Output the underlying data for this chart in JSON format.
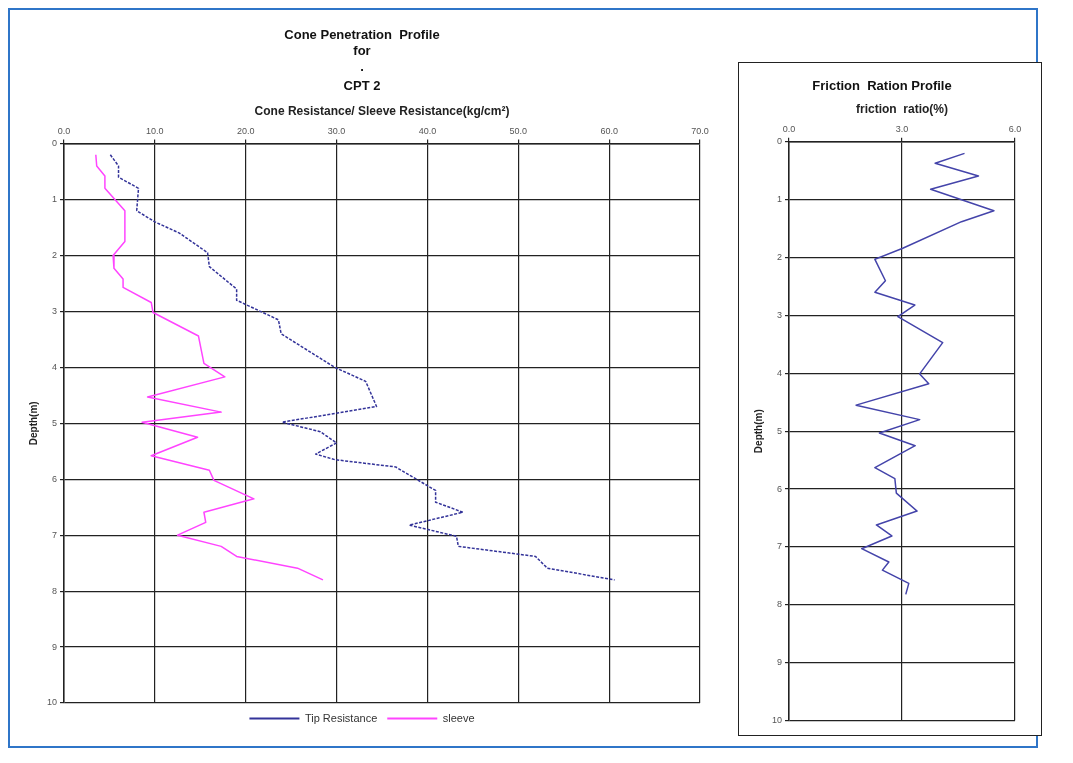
{
  "chart_data": [
    {
      "type": "line",
      "title": "Cone Penetration  Profile\nfor\n.",
      "subtitle": "CPT 2",
      "xlabel": "Cone Resistance/ Sleeve Resistance(kg/cm²)",
      "ylabel": "Depth(m)",
      "xlim": [
        0,
        70
      ],
      "xticks": [
        {
          "value": 0,
          "label": "0.0"
        },
        {
          "value": 10,
          "label": "10.0"
        },
        {
          "value": 20,
          "label": "20.0"
        },
        {
          "value": 30,
          "label": "30.0"
        },
        {
          "value": 40,
          "label": "40.0"
        },
        {
          "value": 50,
          "label": "50.0"
        },
        {
          "value": 60,
          "label": "60.0"
        },
        {
          "value": 70,
          "label": "70.0"
        }
      ],
      "ylim": [
        10,
        0
      ],
      "yticks": [
        0,
        1,
        2,
        3,
        4,
        5,
        6,
        7,
        8,
        9,
        10
      ],
      "grid": true,
      "legend": "bottom",
      "series": [
        {
          "name": "Tip Resistance",
          "color": "#333399",
          "line_style": "dashed",
          "x": [
            5.1,
            6.0,
            6.0,
            8.2,
            8.1,
            8.0,
            10.0,
            12.7,
            15.8,
            16.0,
            19.0,
            19.0,
            23.6,
            23.9,
            29.8,
            33.2,
            34.4,
            24.0,
            28.2,
            30.0,
            27.7,
            29.8,
            36.5,
            39.0,
            40.9,
            40.9,
            43.9,
            38.0,
            43.2,
            43.4,
            51.9,
            53.2,
            60.6
          ],
          "values": [
            0.2,
            0.4,
            0.6,
            0.8,
            1.0,
            1.2,
            1.4,
            1.6,
            1.95,
            2.2,
            2.6,
            2.8,
            3.15,
            3.4,
            4.0,
            4.25,
            4.7,
            4.98,
            5.15,
            5.35,
            5.55,
            5.65,
            5.78,
            6.02,
            6.2,
            6.41,
            6.59,
            6.82,
            7.02,
            7.2,
            7.38,
            7.59,
            7.8
          ]
        },
        {
          "name": "sleeve",
          "color": "#ff44ff",
          "line_style": "solid",
          "x": [
            3.5,
            3.6,
            4.5,
            4.5,
            6.7,
            6.7,
            5.4,
            5.5,
            6.5,
            6.5,
            9.6,
            9.8,
            14.8,
            15.4,
            17.7,
            9.2,
            17.3,
            8.6,
            14.7,
            9.6,
            16.0,
            16.5,
            20.9,
            15.4,
            15.6,
            12.5,
            17.3,
            19.0,
            25.7,
            28.5
          ],
          "values": [
            0.2,
            0.4,
            0.58,
            0.8,
            1.2,
            1.75,
            2.0,
            2.23,
            2.42,
            2.57,
            2.84,
            3.02,
            3.44,
            3.93,
            4.17,
            4.53,
            4.8,
            4.98,
            5.25,
            5.58,
            5.84,
            6.02,
            6.35,
            6.59,
            6.77,
            7.0,
            7.2,
            7.38,
            7.59,
            7.8
          ]
        }
      ]
    },
    {
      "type": "line",
      "title": "Friction  Ration Profile",
      "xlabel": "friction  ratio(%)",
      "ylabel": "Depth(m)",
      "xlim": [
        0,
        6
      ],
      "xticks": [
        {
          "value": 0,
          "label": "0.0"
        },
        {
          "value": 3,
          "label": "3.0"
        },
        {
          "value": 6,
          "label": "6.0"
        }
      ],
      "ylim": [
        10,
        0
      ],
      "yticks": [
        0,
        1,
        2,
        3,
        4,
        5,
        6,
        7,
        8,
        9,
        10
      ],
      "grid": true,
      "series": [
        {
          "color": "#4444aa",
          "line_style": "solid",
          "x": [
            4.66,
            3.88,
            5.03,
            3.76,
            5.44,
            4.58,
            3.02,
            2.28,
            2.56,
            2.28,
            3.34,
            2.89,
            4.08,
            3.47,
            3.71,
            1.78,
            3.47,
            2.4,
            3.35,
            2.28,
            2.81,
            2.85,
            3.4,
            2.32,
            2.73,
            1.93,
            2.65,
            2.48,
            3.18,
            3.1
          ],
          "values": [
            0.2,
            0.37,
            0.59,
            0.82,
            1.19,
            1.38,
            1.84,
            2.03,
            2.4,
            2.6,
            2.82,
            3.02,
            3.47,
            4.01,
            4.18,
            4.55,
            4.8,
            5.03,
            5.25,
            5.63,
            5.82,
            6.07,
            6.38,
            6.62,
            6.81,
            7.03,
            7.26,
            7.4,
            7.63,
            7.82
          ]
        }
      ]
    }
  ]
}
